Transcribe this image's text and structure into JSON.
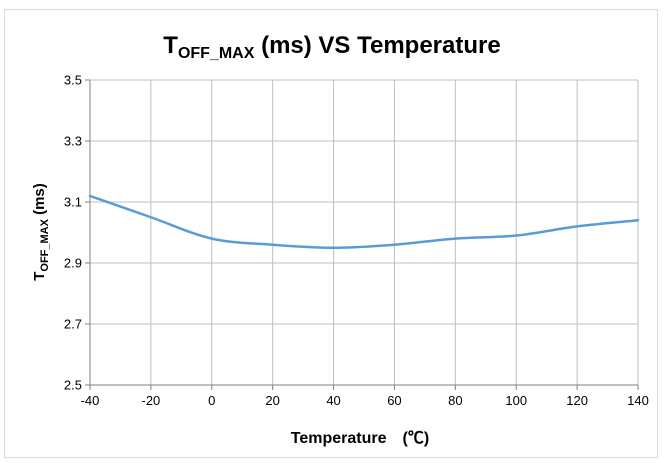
{
  "chart_data": {
    "type": "line",
    "title": {
      "base": "T",
      "subscript": "OFF_MAX",
      "rest": " (ms)  VS Temperature"
    },
    "ylabel": {
      "base": "T",
      "subscript": "OFF_MAX",
      "rest": " (ms)"
    },
    "xlabel": "Temperature　(℃)",
    "xlim": [
      -40,
      140
    ],
    "ylim": [
      2.5,
      3.5
    ],
    "x_ticks": [
      "-40",
      "-20",
      "0",
      "20",
      "40",
      "60",
      "80",
      "100",
      "120",
      "140"
    ],
    "y_ticks": [
      "2.5",
      "2.7",
      "2.9",
      "3.1",
      "3.3",
      "3.5"
    ],
    "grid": true,
    "legend": "none",
    "series": [
      {
        "color": "#5b9bd5",
        "x": [
          -40,
          -20,
          0,
          20,
          40,
          60,
          80,
          100,
          120,
          140
        ],
        "y": [
          3.12,
          3.05,
          2.98,
          2.96,
          2.95,
          2.96,
          2.98,
          2.99,
          3.02,
          3.04
        ]
      }
    ]
  }
}
